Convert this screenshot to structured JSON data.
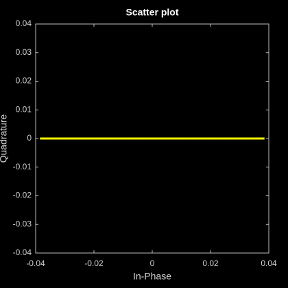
{
  "chart_data": {
    "type": "scatter",
    "title": "Scatter plot",
    "x_label": "In-Phase",
    "y_label": "Quadrature",
    "series": [
      {
        "color": "#ffff00",
        "x": [
          -0.038,
          -0.037,
          -0.036,
          -0.035,
          -0.034,
          -0.033,
          -0.032,
          -0.031,
          -0.03,
          -0.029,
          -0.028,
          -0.027,
          -0.026,
          -0.025,
          -0.024,
          -0.023,
          -0.022,
          -0.021,
          -0.02,
          -0.019,
          -0.018,
          -0.017,
          -0.016,
          -0.015,
          -0.014,
          -0.013,
          -0.012,
          -0.011,
          -0.01,
          -0.009,
          -0.008,
          -0.007,
          -0.006,
          -0.005,
          -0.004,
          -0.003,
          -0.002,
          -0.001,
          0,
          0.001,
          0.002,
          0.003,
          0.004,
          0.005,
          0.006,
          0.007,
          0.008,
          0.009,
          0.01,
          0.011,
          0.012,
          0.013,
          0.014,
          0.015,
          0.016,
          0.017,
          0.018,
          0.019,
          0.02,
          0.021,
          0.022,
          0.023,
          0.024,
          0.025,
          0.026,
          0.027,
          0.028,
          0.029,
          0.03,
          0.031,
          0.032,
          0.033,
          0.034,
          0.035,
          0.036,
          0.037,
          0.038
        ],
        "values": [
          0,
          0,
          0,
          0,
          0,
          0,
          0,
          0,
          0,
          0,
          0,
          0,
          0,
          0,
          0,
          0,
          0,
          0,
          0,
          0,
          0,
          0,
          0,
          0,
          0,
          0,
          0,
          0,
          0,
          0,
          0,
          0,
          0,
          0,
          0,
          0,
          0,
          0,
          0,
          0,
          0,
          0,
          0,
          0,
          0,
          0,
          0,
          0,
          0,
          0,
          0,
          0,
          0,
          0,
          0,
          0,
          0,
          0,
          0,
          0,
          0,
          0,
          0,
          0,
          0,
          0,
          0,
          0,
          0,
          0,
          0,
          0,
          0,
          0,
          0,
          0,
          0
        ]
      }
    ],
    "xlim": [
      -0.04,
      0.04
    ],
    "xticks": [
      -0.04,
      -0.02,
      0,
      0.02,
      0.04
    ],
    "ylim": [
      -0.04,
      0.04
    ],
    "yticks": [
      -0.04,
      -0.03,
      -0.02,
      -0.01,
      0,
      0.01,
      0.02,
      0.03,
      0.04
    ]
  }
}
